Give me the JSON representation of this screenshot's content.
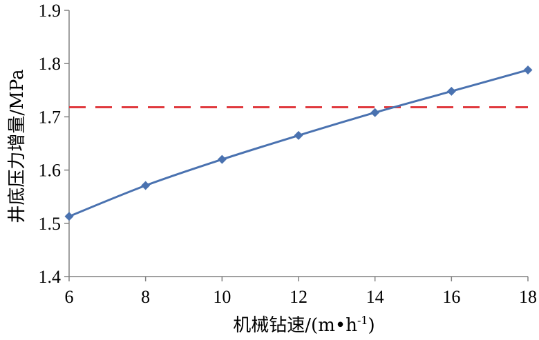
{
  "chart_data": {
    "type": "line",
    "title": "",
    "xlabel_main": "机械钻速/(m•h",
    "xlabel_sup": "-1",
    "xlabel_end": ")",
    "ylabel": "井底压力增量/MPa",
    "xlim": [
      6,
      18
    ],
    "ylim": [
      1.4,
      1.9
    ],
    "x_ticks": [
      "6",
      "8",
      "10",
      "12",
      "14",
      "16",
      "18"
    ],
    "y_ticks": [
      "1.4",
      "1.5",
      "1.6",
      "1.7",
      "1.8",
      "1.9"
    ],
    "grid": false,
    "legend": "none",
    "series": [
      {
        "x": [
          6,
          8,
          10,
          12,
          14,
          16,
          18
        ],
        "values": [
          1.513,
          1.571,
          1.62,
          1.665,
          1.708,
          1.748,
          1.788
        ],
        "color": "#4a72b0",
        "marker": "diamond"
      }
    ],
    "reference_lines": [
      {
        "axis": "y",
        "value": 1.718,
        "color": "#e0393e",
        "style": "dashed"
      }
    ]
  }
}
